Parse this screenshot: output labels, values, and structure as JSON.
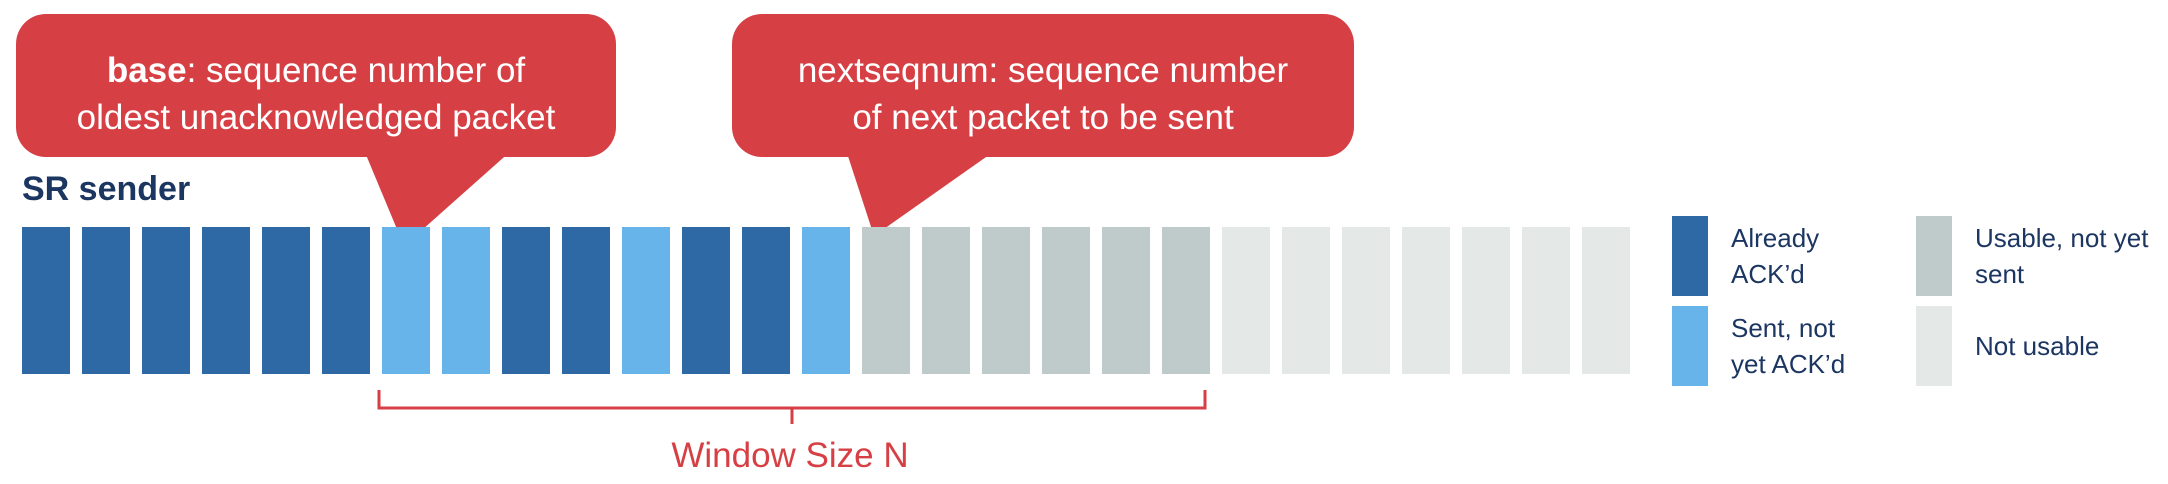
{
  "colors": {
    "acked": "#2e69a6",
    "sent_not_acked": "#66b4e9",
    "usable_not_sent": "#bfcacb",
    "not_usable": "#e4e9e8",
    "callout": "#d64045",
    "title": "#1c3662"
  },
  "callouts": {
    "base": {
      "bold": "base",
      "line1_rest": ": sequence number of",
      "line2": "oldest unacknowledged packet"
    },
    "nextseqnum": {
      "line1": "nextseqnum: sequence number",
      "line2": "of next packet to be sent"
    }
  },
  "title": "SR sender",
  "packets": [
    "acked",
    "acked",
    "acked",
    "acked",
    "acked",
    "acked",
    "sent_not_acked",
    "sent_not_acked",
    "acked",
    "acked",
    "sent_not_acked",
    "acked",
    "acked",
    "sent_not_acked",
    "usable_not_sent",
    "usable_not_sent",
    "usable_not_sent",
    "usable_not_sent",
    "usable_not_sent",
    "usable_not_sent",
    "not_usable",
    "not_usable",
    "not_usable",
    "not_usable",
    "not_usable",
    "not_usable",
    "not_usable"
  ],
  "window": {
    "start_index": 6,
    "end_index": 19,
    "label": "Window Size N"
  },
  "legend": [
    {
      "state": "acked",
      "line1": "Already",
      "line2": "ACK’d"
    },
    {
      "state": "sent_not_acked",
      "line1": "Sent, not",
      "line2": "yet ACK’d"
    },
    {
      "state": "usable_not_sent",
      "line1": "Usable, not yet",
      "line2": "sent"
    },
    {
      "state": "not_usable",
      "line1": "Not usable",
      "line2": ""
    }
  ]
}
